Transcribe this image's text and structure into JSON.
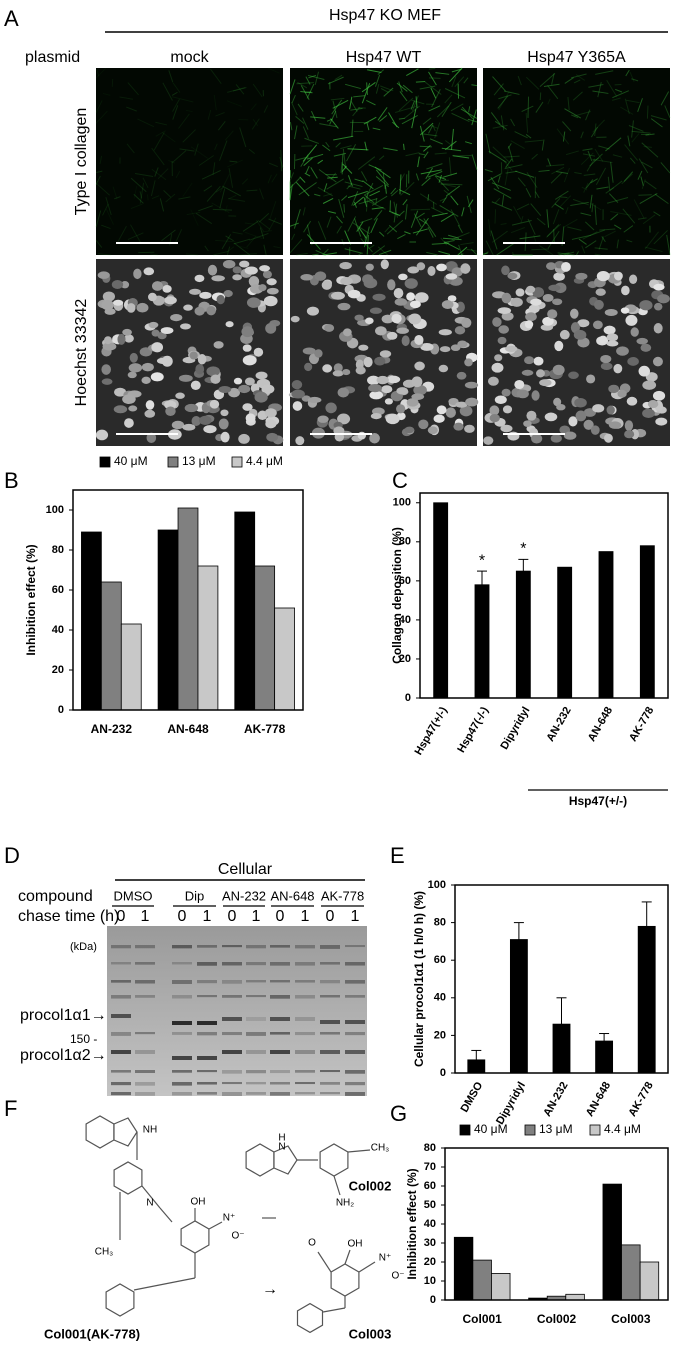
{
  "panels": {
    "labels": [
      "A",
      "B",
      "C",
      "D",
      "E",
      "F",
      "G"
    ]
  },
  "panel_a": {
    "title": "Hsp47 KO MEF",
    "row_header": "plasmid",
    "columns": [
      "mock",
      "Hsp47 WT",
      "Hsp47 Y365A"
    ],
    "rows": [
      "Type I collagen",
      "Hoechst 33342"
    ]
  },
  "panel_d": {
    "title": "Cellular",
    "compound_label": "compound",
    "chase_label": "chase time (h)",
    "compounds": [
      "DMSO",
      "Dip",
      "AN-232",
      "AN-648",
      "AK-778"
    ],
    "chase_times": [
      "0",
      "1"
    ],
    "unit": "(kDa)",
    "marker": "150 -",
    "bands": [
      "procol1α1→",
      "procol1α2→"
    ]
  },
  "panel_f": {
    "compounds": [
      "Col001(AK-778)",
      "Col002",
      "Col003"
    ],
    "arrow": "→",
    "atoms": [
      "NH",
      "N",
      "OH",
      "N⁺",
      "O⁻",
      "CH₃",
      "H",
      "N",
      "CH₃",
      "NH₂",
      "O",
      "OH",
      "N⁺",
      "O⁻"
    ]
  },
  "chart_data": [
    {
      "type": "bar",
      "ylabel": "Inhibition effect (%)",
      "categories": [
        "AN-232",
        "AN-648",
        "AK-778"
      ],
      "series": [
        {
          "name": "40 μM",
          "color": "#000000",
          "values": [
            89,
            90,
            99
          ]
        },
        {
          "name": "13 μM",
          "color": "#808080",
          "values": [
            64,
            101,
            72
          ]
        },
        {
          "name": "4.4 μM",
          "color": "#c8c8c8",
          "values": [
            43,
            72,
            51
          ]
        }
      ],
      "ylim": [
        0,
        110
      ],
      "yticks": [
        0,
        20,
        40,
        60,
        80,
        100
      ],
      "grid": false
    },
    {
      "type": "bar",
      "ylabel": "Collagen deposition (%)",
      "categories": [
        "Hsp47(+/-)",
        "Hsp47(-/-)",
        "Dipyridyl",
        "AN-232",
        "AN-648",
        "AK-778"
      ],
      "values": [
        100,
        58,
        65,
        67,
        75,
        78
      ],
      "errors": [
        null,
        7,
        6,
        null,
        null,
        null
      ],
      "significance": [
        null,
        "*",
        "*",
        null,
        null,
        null
      ],
      "group_label": "Hsp47(+/-)",
      "color": "#000000",
      "ylim": [
        0,
        105
      ],
      "yticks": [
        0,
        20,
        40,
        60,
        80,
        100
      ],
      "grid": false
    },
    {
      "type": "bar",
      "ylabel": "Cellular procol1α1 (1 h/0 h) (%)",
      "categories": [
        "DMSO",
        "Dipyridyl",
        "AN-232",
        "AN-648",
        "AK-778"
      ],
      "values": [
        7,
        71,
        26,
        17,
        78
      ],
      "errors": [
        5,
        9,
        14,
        4,
        13
      ],
      "color": "#000000",
      "ylim": [
        0,
        100
      ],
      "yticks": [
        0,
        20,
        40,
        60,
        80,
        100
      ],
      "grid": false
    },
    {
      "type": "bar",
      "ylabel": "Inhibition effect (%)",
      "categories": [
        "Col001",
        "Col002",
        "Col003"
      ],
      "series": [
        {
          "name": "40 μM",
          "color": "#000000",
          "values": [
            33,
            1,
            61
          ]
        },
        {
          "name": "13 μM",
          "color": "#808080",
          "values": [
            21,
            2,
            29
          ]
        },
        {
          "name": "4.4 μM",
          "color": "#c8c8c8",
          "values": [
            14,
            3,
            20
          ]
        }
      ],
      "ylim": [
        0,
        80
      ],
      "yticks": [
        0,
        10,
        20,
        30,
        40,
        50,
        60,
        70,
        80
      ],
      "grid": false
    }
  ]
}
